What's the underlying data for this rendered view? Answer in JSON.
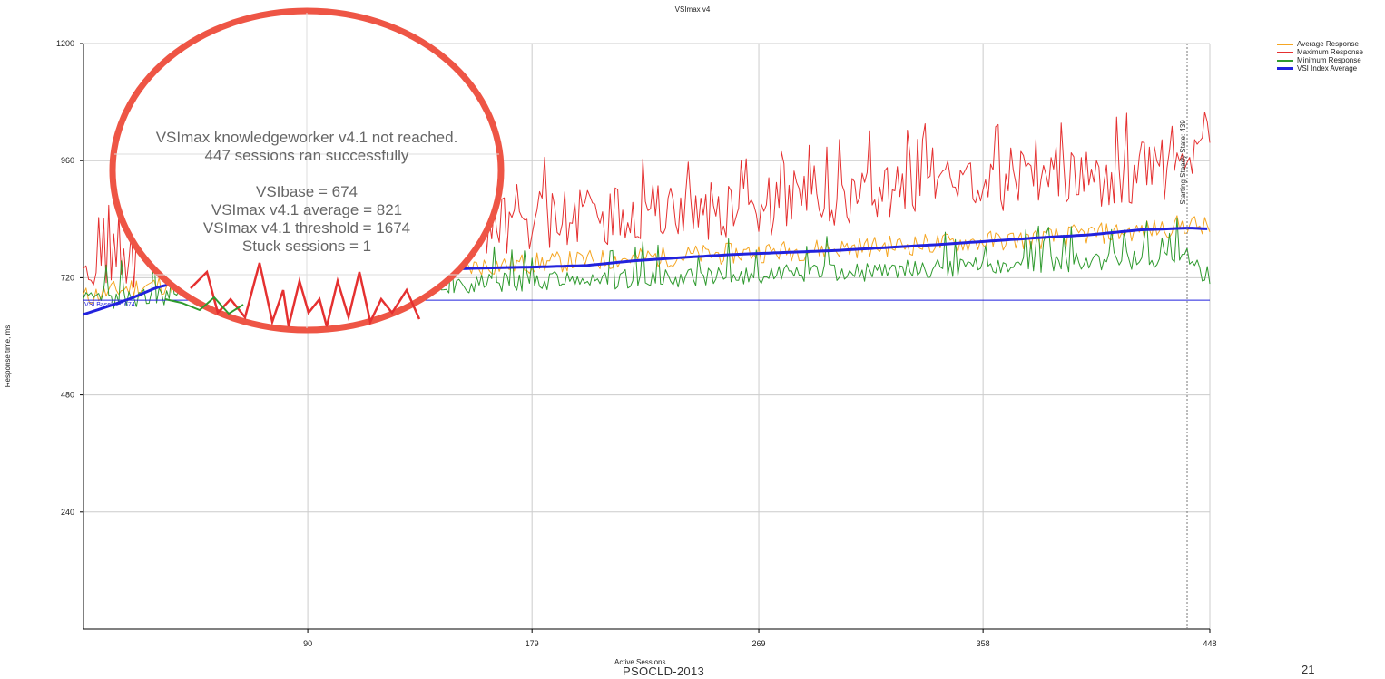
{
  "chart_data": {
    "type": "line",
    "title": "VSImax v4",
    "xlabel": "Active Sessions",
    "ylabel": "Response time, ms",
    "xlim": [
      1,
      448
    ],
    "ylim": [
      0,
      1200
    ],
    "x_ticks": [
      90,
      179,
      269,
      358,
      448
    ],
    "y_ticks": [
      240,
      480,
      720,
      960,
      1200
    ],
    "grid": true,
    "legend_position": "top-right",
    "series": [
      {
        "name": "Average Response",
        "color": "#f5a623",
        "x": [
          1,
          20,
          40,
          60,
          80,
          100,
          120,
          140,
          160,
          180,
          200,
          220,
          240,
          260,
          280,
          300,
          320,
          340,
          360,
          380,
          400,
          420,
          440,
          448
        ],
        "values": [
          680,
          700,
          710,
          720,
          722,
          726,
          728,
          730,
          745,
          750,
          755,
          760,
          765,
          770,
          775,
          780,
          785,
          790,
          795,
          800,
          810,
          815,
          830,
          820
        ]
      },
      {
        "name": "Maximum Response",
        "color": "#e53030",
        "x": [
          1,
          20,
          40,
          60,
          80,
          100,
          120,
          140,
          160,
          180,
          200,
          220,
          240,
          260,
          280,
          300,
          320,
          340,
          360,
          380,
          400,
          420,
          440,
          448
        ],
        "values": [
          700,
          760,
          740,
          720,
          730,
          740,
          760,
          790,
          820,
          840,
          845,
          850,
          855,
          860,
          870,
          880,
          885,
          900,
          910,
          915,
          920,
          925,
          940,
          1040
        ]
      },
      {
        "name": "Minimum Response",
        "color": "#2e9a2e",
        "x": [
          1,
          20,
          40,
          60,
          80,
          100,
          120,
          140,
          160,
          180,
          200,
          220,
          240,
          260,
          280,
          300,
          320,
          340,
          360,
          380,
          400,
          420,
          440,
          448
        ],
        "values": [
          670,
          680,
          685,
          690,
          695,
          700,
          700,
          705,
          710,
          712,
          715,
          718,
          720,
          725,
          728,
          730,
          735,
          740,
          745,
          748,
          752,
          758,
          765,
          690
        ]
      },
      {
        "name": "VSI Index Average",
        "color": "#2222dd",
        "x": [
          1,
          10,
          20,
          30,
          40,
          60,
          80,
          100,
          120,
          140,
          160,
          180,
          200,
          220,
          240,
          260,
          280,
          300,
          320,
          340,
          360,
          380,
          400,
          420,
          440,
          448
        ],
        "values": [
          645,
          660,
          678,
          700,
          712,
          722,
          728,
          732,
          735,
          737,
          740,
          742,
          745,
          755,
          762,
          768,
          772,
          776,
          782,
          788,
          795,
          802,
          808,
          818,
          822,
          820
        ]
      }
    ],
    "annotations": {
      "baseline_label": "VSI Baseline: 674",
      "baseline_value": 674,
      "steady_state_label": "Starting Steady State: 439",
      "steady_state_x": 439
    },
    "callout_lines": [
      "VSImax knowledgeworker v4.1 not reached.",
      "447 sessions ran successfully",
      "VSIbase = 674",
      "VSImax v4.1 average = 821",
      "VSImax v4.1 threshold = 1674",
      "Stuck sessions = 1"
    ]
  },
  "footer": {
    "left": "PSOCLD-2013",
    "page_number": "21"
  },
  "colors": {
    "callout_ring": "#ee5545",
    "axis": "#000000",
    "grid": "#cccccc"
  }
}
